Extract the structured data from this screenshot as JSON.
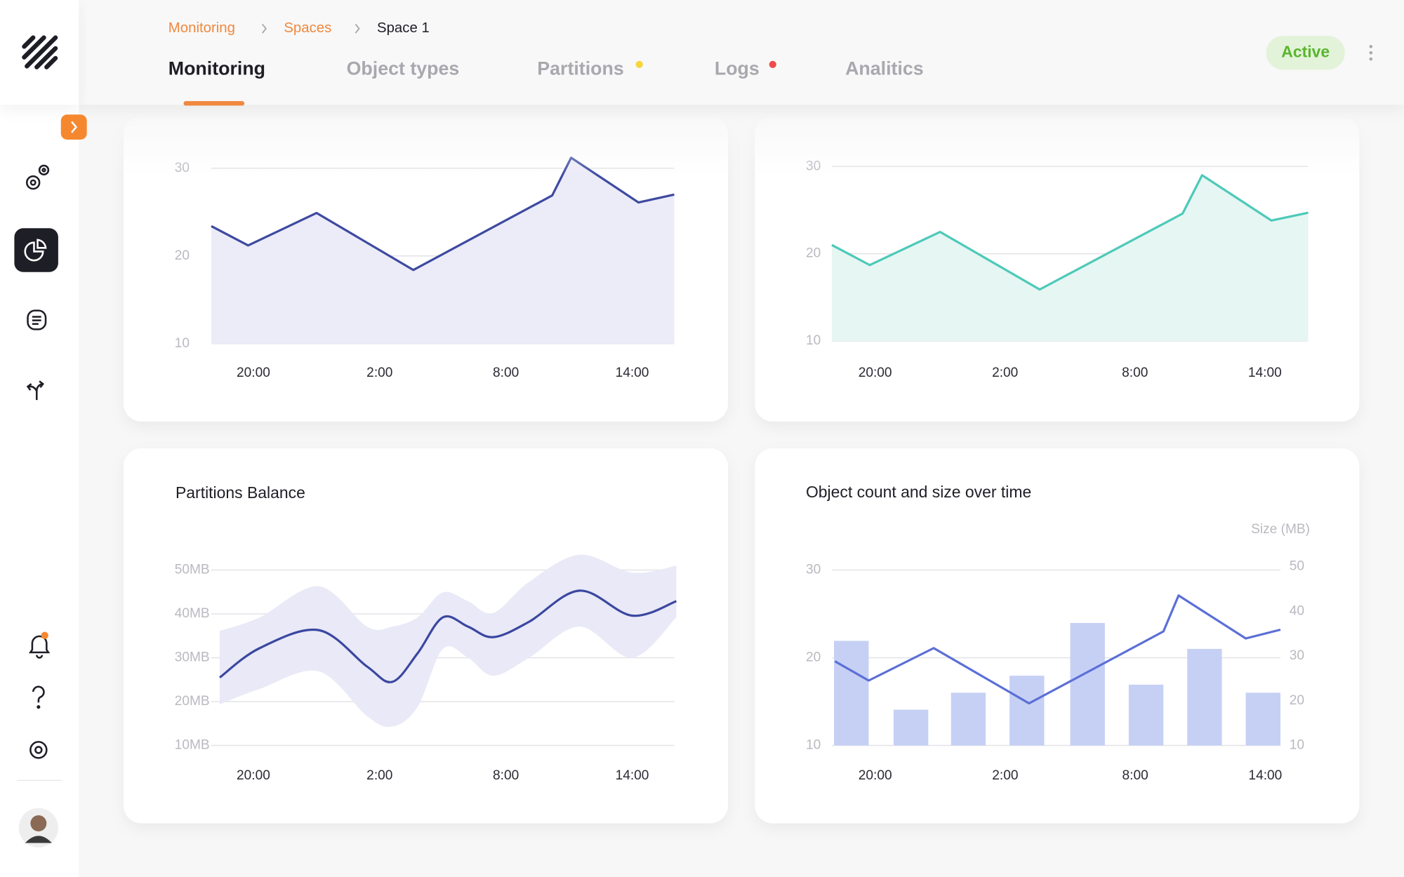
{
  "breadcrumbs": [
    "Monitoring",
    "Spaces",
    "Space 1"
  ],
  "tabs": [
    "Monitoring",
    "Object types",
    "Partitions",
    "Logs",
    "Analitics"
  ],
  "status": "Active",
  "chart_data": [
    {
      "type": "area",
      "x": [
        -2,
        -0.25,
        3,
        7.6,
        14.2,
        15.1,
        18.3,
        20
      ],
      "series": [
        {
          "color": "#3d4aa0",
          "fill": "#ecebf8",
          "values": [
            23.4,
            21.2,
            24.9,
            18.4,
            26.9,
            31.2,
            26.1,
            27.0
          ]
        }
      ],
      "xlim": [
        -2,
        20
      ],
      "ylim": [
        10,
        32
      ],
      "yticks": [
        10,
        20,
        30
      ],
      "grid": true,
      "xticks": [
        {
          "value": 0,
          "label": "20:00"
        },
        {
          "value": 6,
          "label": "2:00"
        },
        {
          "value": 12,
          "label": "8:00"
        },
        {
          "value": 18,
          "label": "14:00"
        }
      ]
    },
    {
      "type": "area",
      "x": [
        -2,
        -0.25,
        3,
        7.6,
        14.2,
        15.1,
        18.3,
        20
      ],
      "series": [
        {
          "color": "#4dc9b8",
          "fill": "#e5f6f3",
          "values": [
            21.0,
            18.7,
            22.5,
            15.9,
            24.6,
            29.0,
            23.8,
            24.7
          ]
        }
      ],
      "xlim": [
        -2,
        20
      ],
      "ylim": [
        10,
        32
      ],
      "yticks": [
        10,
        20,
        30
      ],
      "grid": true,
      "xticks": [
        {
          "value": 0,
          "label": "20:00"
        },
        {
          "value": 6,
          "label": "2:00"
        },
        {
          "value": 12,
          "label": "8:00"
        },
        {
          "value": 18,
          "label": "14:00"
        }
      ]
    },
    {
      "type": "band",
      "title": "Partitions Balance",
      "x": [
        -1.6,
        0.3,
        3.1,
        5.4,
        6.6,
        7.8,
        9.0,
        10.2,
        11.4,
        13.1,
        15.5,
        18.0,
        20.1
      ],
      "series": [
        {
          "color": "#3a47a0",
          "values": [
            25.5,
            32.2,
            36.3,
            28.0,
            24.5,
            31.0,
            39.2,
            37.1,
            34.7,
            38.2,
            45.3,
            39.6,
            42.9
          ]
        }
      ],
      "band": {
        "color": "#e9e9f7",
        "upper": [
          36.1,
          39.2,
          46.3,
          37.1,
          37.1,
          39.2,
          44.9,
          42.9,
          40.2,
          47.3,
          53.5,
          49.4,
          51.0
        ],
        "lower": [
          19.4,
          22.9,
          26.9,
          16.7,
          14.3,
          18.8,
          32.0,
          30.0,
          25.9,
          30.0,
          37.1,
          30.0,
          39.2
        ]
      },
      "xlim": [
        -2,
        20
      ],
      "ylim": [
        10,
        55
      ],
      "grid": true,
      "yticks": [
        {
          "value": 10,
          "label": "10MB"
        },
        {
          "value": 20,
          "label": "20MB"
        },
        {
          "value": 30,
          "label": "30MB"
        },
        {
          "value": 40,
          "label": "40MB"
        },
        {
          "value": 50,
          "label": "50MB"
        }
      ],
      "xticks": [
        {
          "value": 0,
          "label": "20:00"
        },
        {
          "value": 6,
          "label": "2:00"
        },
        {
          "value": 12,
          "label": "8:00"
        },
        {
          "value": 18,
          "label": "14:00"
        }
      ]
    },
    {
      "type": "combo",
      "title": "Object count and size over time",
      "y2_label": "Size (MB)",
      "series": [
        {
          "type": "bar",
          "axis": "y2",
          "color": "#c6d0f5",
          "x": [
            -1.1,
            1.65,
            4.3,
            7.0,
            9.8,
            12.5,
            15.2,
            17.9
          ],
          "values": [
            33.4,
            18.0,
            21.8,
            25.6,
            37.4,
            23.6,
            31.6,
            21.8
          ]
        },
        {
          "type": "line",
          "color": "#5b6fd6",
          "x": [
            -1.86,
            -0.3,
            2.7,
            7.1,
            13.3,
            14.0,
            17.1,
            18.7
          ],
          "values": [
            19.6,
            17.4,
            21.1,
            14.8,
            23.0,
            27.1,
            22.2,
            23.2
          ]
        }
      ],
      "xlim": [
        -2,
        18.7
      ],
      "ylim": [
        10,
        31
      ],
      "yticks": [
        10,
        20,
        30
      ],
      "grid": true,
      "y2lim": [
        10,
        51.2
      ],
      "y2ticks": [
        10,
        20,
        30,
        40,
        50
      ],
      "xticks": [
        {
          "value": 0,
          "label": "20:00"
        },
        {
          "value": 6,
          "label": "2:00"
        },
        {
          "value": 12,
          "label": "8:00"
        },
        {
          "value": 18,
          "label": "14:00"
        }
      ]
    }
  ]
}
